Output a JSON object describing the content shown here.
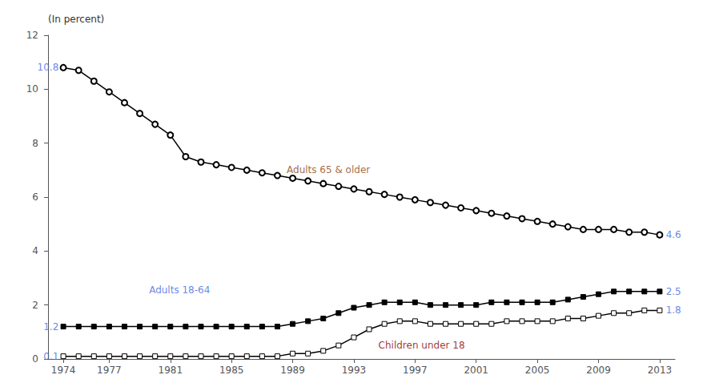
{
  "chart_data": {
    "type": "line",
    "ylabel": "(In percent)",
    "x": [
      1974,
      1975,
      1976,
      1977,
      1978,
      1979,
      1980,
      1981,
      1982,
      1983,
      1984,
      1985,
      1986,
      1987,
      1988,
      1989,
      1990,
      1991,
      1992,
      1993,
      1994,
      1995,
      1996,
      1997,
      1998,
      1999,
      2000,
      2001,
      2002,
      2003,
      2004,
      2005,
      2006,
      2007,
      2008,
      2009,
      2010,
      2011,
      2012,
      2013
    ],
    "series": [
      {
        "color": "#000000",
        "marker": "open_circle",
        "values": [
          10.8,
          10.7,
          10.3,
          9.9,
          9.5,
          9.1,
          8.7,
          8.3,
          7.5,
          7.3,
          7.2,
          7.1,
          7.0,
          6.9,
          6.8,
          6.7,
          6.6,
          6.5,
          6.4,
          6.3,
          6.2,
          6.1,
          6.0,
          5.9,
          5.8,
          5.7,
          5.6,
          5.5,
          5.4,
          5.3,
          5.2,
          5.1,
          5.0,
          4.9,
          4.8,
          4.8,
          4.8,
          4.7,
          4.7,
          4.6
        ]
      },
      {
        "color": "#000000",
        "marker": "square",
        "values": [
          1.2,
          1.2,
          1.2,
          1.2,
          1.2,
          1.2,
          1.2,
          1.2,
          1.2,
          1.2,
          1.2,
          1.2,
          1.2,
          1.2,
          1.2,
          1.3,
          1.4,
          1.5,
          1.7,
          1.9,
          2.0,
          2.1,
          2.1,
          2.1,
          2.0,
          2.0,
          2.0,
          2.0,
          2.1,
          2.1,
          2.1,
          2.1,
          2.1,
          2.2,
          2.3,
          2.4,
          2.5,
          2.5,
          2.5,
          2.5
        ]
      },
      {
        "color": "#000000",
        "marker": "open_square",
        "values": [
          0.1,
          0.1,
          0.1,
          0.1,
          0.1,
          0.1,
          0.1,
          0.1,
          0.1,
          0.1,
          0.1,
          0.1,
          0.1,
          0.1,
          0.1,
          0.2,
          0.2,
          0.3,
          0.5,
          0.8,
          1.1,
          1.3,
          1.4,
          1.4,
          1.3,
          1.3,
          1.3,
          1.3,
          1.3,
          1.4,
          1.4,
          1.4,
          1.4,
          1.5,
          1.5,
          1.6,
          1.7,
          1.7,
          1.8,
          1.8
        ]
      }
    ],
    "xlim": [
      1973,
      2014
    ],
    "xticks": [
      1974,
      1977,
      1981,
      1985,
      1989,
      1993,
      1997,
      2001,
      2005,
      2009,
      2013
    ],
    "ylim": [
      0,
      12
    ],
    "yticks": [
      0,
      2,
      4,
      6,
      8,
      10,
      12
    ],
    "grid": false,
    "annotations": [
      {
        "text": "Adults 65 & older",
        "x": 1988.5,
        "y": 7.0,
        "color": "#8B4513"
      },
      {
        "text": "Adults 18-64",
        "x": 1979.5,
        "y": 2.55,
        "color": "#4169E1"
      },
      {
        "text": "Children under 18",
        "x": 1994.5,
        "y": 0.5,
        "color": "#8B0000"
      },
      {
        "text": "10.8",
        "x": 1973.8,
        "y": 10.8,
        "color": "#4169E1"
      },
      {
        "text": "1.2",
        "x": 1973.8,
        "y": 1.2,
        "color": "#4169E1"
      },
      {
        "text": "0.1",
        "x": 1973.8,
        "y": 0.1,
        "color": "#4169E1"
      },
      {
        "text": "4.6",
        "x": 2013.3,
        "y": 4.6,
        "color": "#4169E1"
      },
      {
        "text": "2.5",
        "x": 2013.3,
        "y": 2.5,
        "color": "#4169E1"
      },
      {
        "text": "1.8",
        "x": 2013.3,
        "y": 1.8,
        "color": "#4169E1"
      }
    ]
  }
}
